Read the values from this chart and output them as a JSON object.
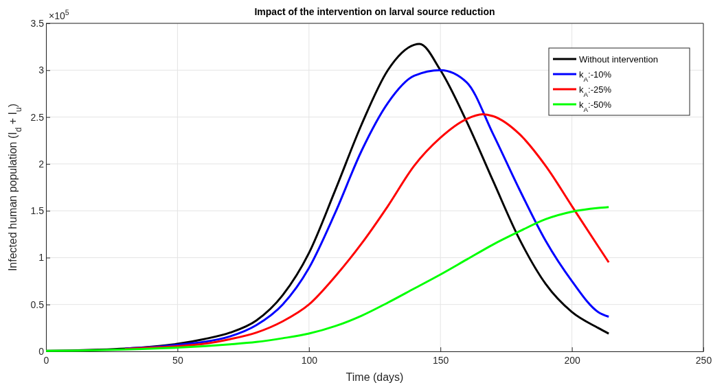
{
  "chart_data": {
    "type": "line",
    "title": "Impact of the intervention on larval source reduction",
    "xlabel": "Time (days)",
    "ylabel": "Infected human population (I$_{d}$ + I$_{u}$)",
    "annotations": [
      "×10$^{5}$"
    ],
    "xlim": [
      0,
      250
    ],
    "xticks": [
      0,
      50,
      100,
      150,
      200,
      250
    ],
    "ylim": [
      0,
      3.5
    ],
    "yticks": [
      0,
      0.5,
      1,
      1.5,
      2,
      2.5,
      3,
      3.5
    ],
    "grid": true,
    "legend": "top right",
    "line_style": "solid",
    "marker": "none",
    "series": [
      {
        "name": "Without intervention",
        "color": "#000000",
        "x": [
          0,
          10,
          20,
          30,
          40,
          50,
          60,
          70,
          80,
          90,
          100,
          110,
          120,
          130,
          140,
          142,
          150,
          160,
          170,
          180,
          190,
          200,
          210,
          214
        ],
        "values": [
          0.005,
          0.01,
          0.018,
          0.03,
          0.05,
          0.08,
          0.13,
          0.2,
          0.33,
          0.6,
          1.05,
          1.72,
          2.42,
          3.0,
          3.27,
          3.28,
          3.0,
          2.45,
          1.82,
          1.2,
          0.72,
          0.42,
          0.25,
          0.19
        ]
      },
      {
        "name": "k$_{A}$:-10%",
        "color": "#0000ff",
        "x": [
          30,
          40,
          50,
          60,
          70,
          80,
          90,
          100,
          110,
          120,
          130,
          140,
          150,
          160,
          170,
          180,
          190,
          200,
          210,
          214
        ],
        "values": [
          0.03,
          0.045,
          0.07,
          0.1,
          0.16,
          0.28,
          0.5,
          0.89,
          1.48,
          2.14,
          2.65,
          2.94,
          3.0,
          2.87,
          2.32,
          1.73,
          1.18,
          0.75,
          0.42,
          0.37
        ]
      },
      {
        "name": "k$_{A}$:-25%",
        "color": "#ff0000",
        "x": [
          30,
          40,
          50,
          60,
          70,
          80,
          90,
          100,
          110,
          120,
          130,
          140,
          150,
          160,
          166,
          170,
          180,
          190,
          200,
          210,
          214
        ],
        "values": [
          0.025,
          0.04,
          0.055,
          0.08,
          0.13,
          0.2,
          0.32,
          0.5,
          0.8,
          1.15,
          1.55,
          1.98,
          2.28,
          2.48,
          2.53,
          2.51,
          2.32,
          1.98,
          1.55,
          1.12,
          0.95
        ]
      },
      {
        "name": "k$_{A}$:-50%",
        "color": "#00ff00",
        "x": [
          0,
          10,
          20,
          30,
          40,
          50,
          60,
          70,
          80,
          90,
          100,
          110,
          120,
          130,
          140,
          150,
          160,
          170,
          180,
          190,
          200,
          210,
          214
        ],
        "values": [
          0.005,
          0.008,
          0.013,
          0.02,
          0.03,
          0.04,
          0.055,
          0.075,
          0.1,
          0.14,
          0.19,
          0.27,
          0.38,
          0.52,
          0.67,
          0.82,
          0.98,
          1.14,
          1.28,
          1.41,
          1.49,
          1.53,
          1.54
        ]
      }
    ]
  }
}
